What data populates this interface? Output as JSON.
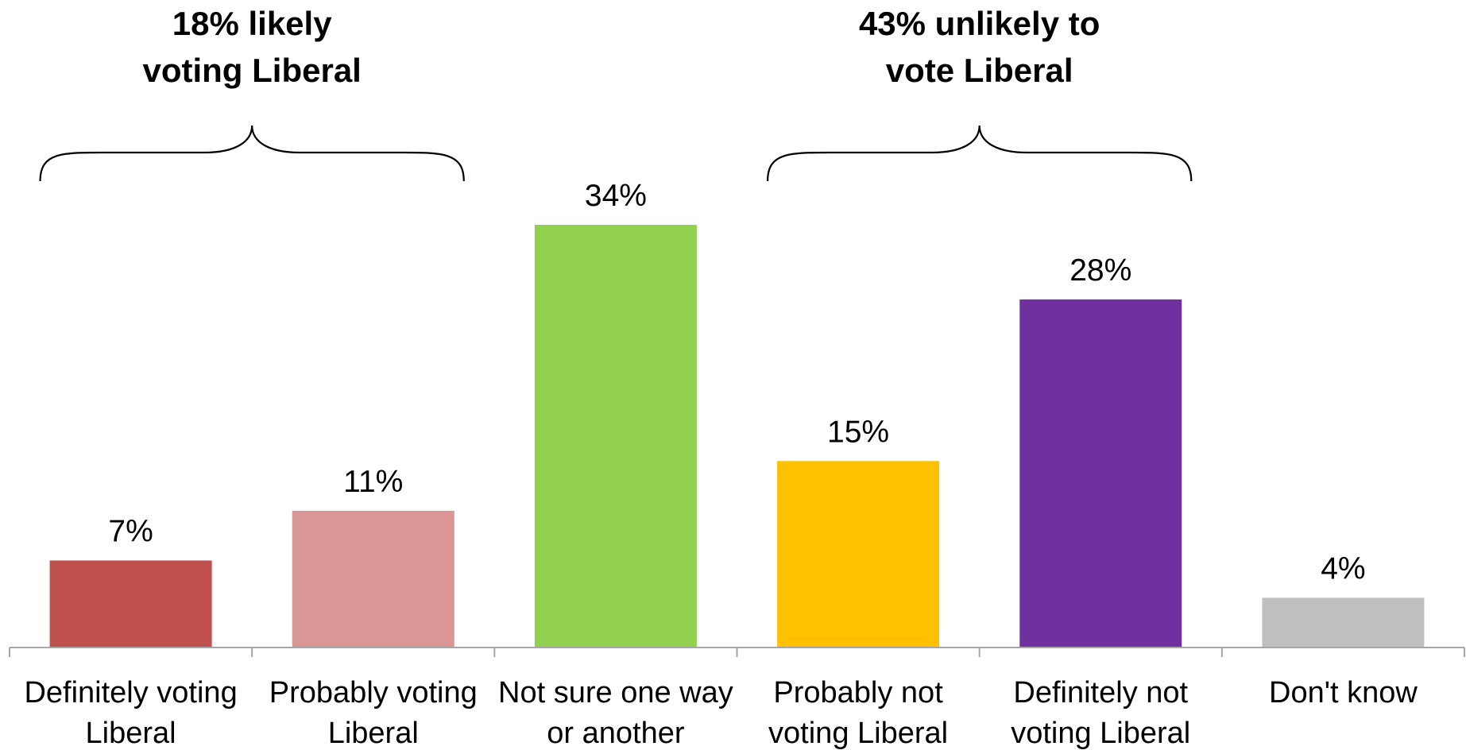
{
  "chart_data": {
    "type": "bar",
    "categories": [
      [
        "Definitely voting",
        "Liberal"
      ],
      [
        "Probably voting",
        "Liberal"
      ],
      [
        "Not sure one way",
        "or another"
      ],
      [
        "Probably not",
        "voting Liberal"
      ],
      [
        "Definitely not",
        "voting Liberal"
      ],
      [
        "Don't know"
      ]
    ],
    "values": [
      7,
      11,
      34,
      15,
      28,
      4
    ],
    "value_labels": [
      "7%",
      "11%",
      "34%",
      "15%",
      "28%",
      "4%"
    ],
    "colors": [
      "#C0504D",
      "#D99694",
      "#92D050",
      "#FFC000",
      "#7030A0",
      "#BFBFBF"
    ],
    "ylim": [
      0,
      34
    ],
    "grid": false,
    "legend": "none",
    "annotations": [
      {
        "lines": [
          "18% likely",
          "voting Liberal"
        ],
        "spans_categories": [
          0,
          1
        ]
      },
      {
        "lines": [
          "43% unlikely to",
          "vote Liberal"
        ],
        "spans_categories": [
          3,
          4
        ]
      }
    ]
  }
}
